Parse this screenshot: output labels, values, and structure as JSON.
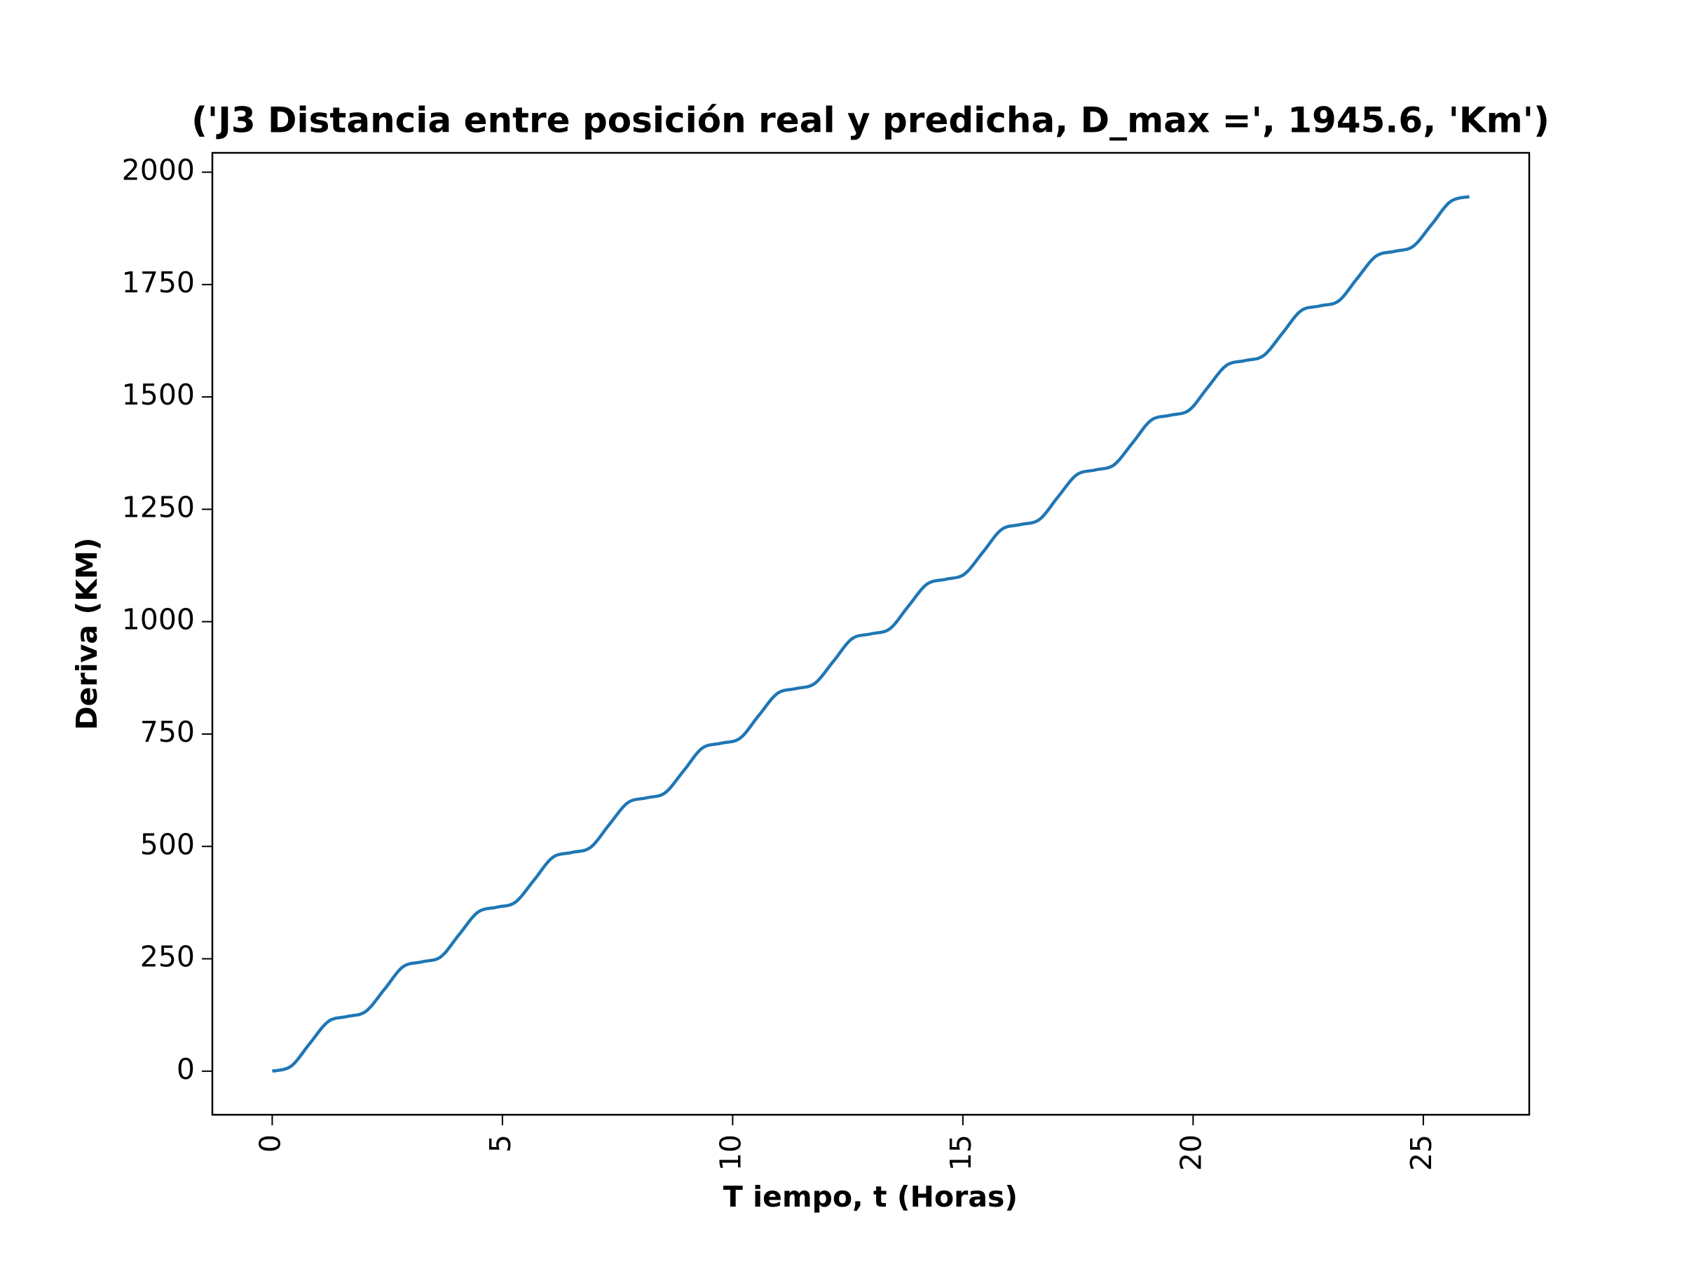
{
  "chart_data": {
    "type": "line",
    "title": "('J3 Distancia entre posición real y predicha, D_max =', 1945.6, 'Km')",
    "x_label": "T iempo, t (Horas)",
    "y_label": "Deriva (KM)",
    "x": [
      0,
      0.41,
      0.81,
      1.22,
      1.63,
      2.03,
      2.44,
      2.84,
      3.25,
      3.66,
      4.06,
      4.47,
      4.88,
      5.28,
      5.69,
      6.09,
      6.5,
      6.91,
      7.31,
      7.72,
      8.13,
      8.53,
      8.94,
      9.34,
      9.75,
      10.16,
      10.56,
      10.97,
      11.38,
      11.78,
      12.19,
      12.59,
      13.0,
      13.41,
      13.81,
      14.22,
      14.63,
      15.03,
      15.44,
      15.84,
      16.25,
      16.66,
      17.06,
      17.47,
      17.88,
      18.28,
      18.69,
      19.09,
      19.5,
      19.91,
      20.31,
      20.72,
      21.13,
      21.53,
      21.94,
      22.34,
      22.75,
      23.16,
      23.56,
      23.97,
      24.38,
      24.78,
      25.19,
      25.59,
      26.0
    ],
    "series": [
      {
        "name": "Deriva",
        "color": "#1f77b4",
        "values": [
          0,
          11.1,
          60.8,
          110.6,
          121.6,
          132.7,
          182.4,
          232.2,
          243.2,
          254.3,
          304.0,
          353.8,
          364.8,
          375.9,
          425.6,
          475.4,
          486.4,
          497.5,
          547.2,
          597.0,
          608.0,
          619.1,
          668.8,
          718.6,
          729.6,
          740.7,
          790.4,
          840.2,
          851.2,
          862.3,
          912.0,
          961.8,
          972.8,
          983.9,
          1033.6,
          1083.4,
          1094.4,
          1105.5,
          1155.2,
          1205.0,
          1216.0,
          1227.1,
          1276.8,
          1326.6,
          1337.6,
          1348.7,
          1398.4,
          1448.2,
          1459.2,
          1470.3,
          1520.0,
          1569.8,
          1580.8,
          1591.9,
          1641.6,
          1691.4,
          1702.4,
          1713.5,
          1763.2,
          1813.0,
          1824.0,
          1835.1,
          1884.8,
          1934.6,
          1945.6
        ]
      }
    ],
    "xlim": [
      -1.3,
      27.3
    ],
    "ylim": [
      -97,
      2043
    ],
    "xticks": [
      0,
      5,
      10,
      15,
      20,
      25
    ],
    "yticks": [
      0,
      250,
      500,
      750,
      1000,
      1250,
      1500,
      1750,
      2000
    ],
    "grid": false
  }
}
